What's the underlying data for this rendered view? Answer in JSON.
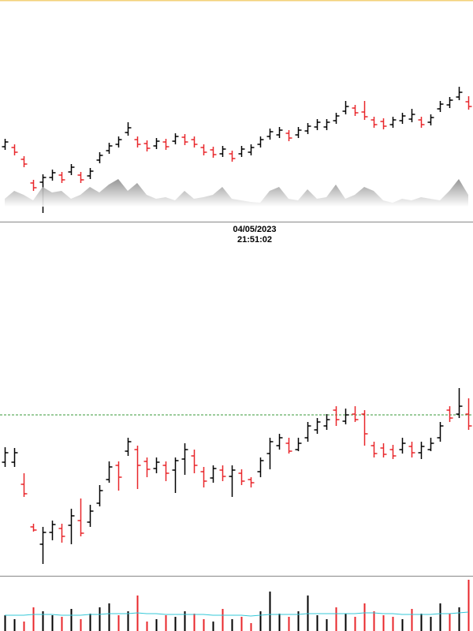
{
  "chart_data": [
    {
      "type": "ohlc",
      "up_color": "#000000",
      "down_color": "#e8262a",
      "ylim": [
        20,
        300
      ],
      "open": [
        114,
        113,
        98,
        68,
        69,
        75,
        78,
        82,
        78,
        77,
        97,
        109,
        117,
        132,
        123,
        118,
        115,
        120,
        121,
        126,
        123,
        113,
        110,
        105,
        105,
        105,
        107,
        117,
        127,
        129,
        131,
        129,
        134,
        139,
        139,
        147,
        159,
        163,
        158,
        148,
        146,
        142,
        147,
        149,
        148,
        145,
        162,
        167,
        177,
        171
      ],
      "high": [
        124,
        117,
        102,
        72,
        79,
        85,
        82,
        92,
        82,
        87,
        107,
        119,
        127,
        145,
        127,
        122,
        125,
        124,
        131,
        130,
        127,
        117,
        114,
        115,
        109,
        115,
        117,
        127,
        137,
        139,
        135,
        139,
        144,
        149,
        149,
        157,
        172,
        167,
        172,
        152,
        150,
        152,
        157,
        162,
        152,
        155,
        172,
        177,
        190,
        178
      ],
      "low": [
        110,
        103,
        88,
        58,
        30,
        71,
        68,
        78,
        68,
        73,
        93,
        105,
        113,
        128,
        113,
        108,
        111,
        110,
        117,
        116,
        113,
        103,
        100,
        101,
        95,
        101,
        103,
        113,
        123,
        125,
        121,
        125,
        130,
        135,
        135,
        143,
        155,
        153,
        148,
        138,
        136,
        138,
        143,
        145,
        138,
        141,
        158,
        163,
        173,
        161
      ],
      "close": [
        120,
        107,
        92,
        62,
        75,
        81,
        72,
        88,
        72,
        83,
        103,
        115,
        123,
        138,
        117,
        112,
        121,
        114,
        127,
        120,
        117,
        107,
        104,
        111,
        99,
        111,
        113,
        123,
        133,
        135,
        125,
        135,
        140,
        145,
        145,
        153,
        165,
        157,
        152,
        142,
        140,
        148,
        153,
        155,
        142,
        151,
        168,
        173,
        183,
        165
      ]
    },
    {
      "type": "area",
      "color": "#9a9a9a",
      "ylim": [
        0,
        100
      ],
      "values": [
        10,
        20,
        15,
        8,
        25,
        18,
        20,
        10,
        15,
        25,
        18,
        28,
        35,
        20,
        30,
        15,
        10,
        12,
        8,
        20,
        10,
        12,
        15,
        25,
        10,
        8,
        6,
        5,
        20,
        25,
        10,
        8,
        22,
        10,
        12,
        28,
        10,
        15,
        25,
        20,
        8,
        5,
        10,
        8,
        12,
        10,
        8,
        20,
        35,
        15
      ]
    },
    {
      "type": "ohlc",
      "up_color": "#000000",
      "down_color": "#e8262a",
      "ylim": [
        0,
        420
      ],
      "reference_line": 204,
      "reference_color": "#3a9a3a",
      "open": [
        144,
        144,
        116,
        62,
        40,
        55,
        60,
        64,
        70,
        68,
        92,
        122,
        140,
        158,
        160,
        145,
        136,
        140,
        134,
        148,
        152,
        132,
        124,
        134,
        126,
        130,
        122,
        132,
        155,
        165,
        168,
        160,
        175,
        185,
        190,
        210,
        196,
        205,
        205,
        165,
        162,
        160,
        160,
        164,
        156,
        160,
        175,
        210,
        205,
        205
      ],
      "high": [
        163,
        162,
        130,
        66,
        62,
        70,
        66,
        85,
        98,
        90,
        115,
        145,
        145,
        175,
        165,
        150,
        150,
        145,
        150,
        168,
        160,
        138,
        140,
        140,
        140,
        135,
        125,
        150,
        175,
        180,
        175,
        175,
        195,
        200,
        205,
        215,
        212,
        215,
        210,
        170,
        168,
        166,
        175,
        170,
        170,
        175,
        195,
        215,
        238,
        225
      ],
      "low": [
        138,
        138,
        100,
        56,
        15,
        45,
        42,
        40,
        50,
        62,
        88,
        118,
        108,
        152,
        110,
        125,
        130,
        120,
        105,
        128,
        130,
        112,
        118,
        120,
        100,
        115,
        112,
        125,
        135,
        160,
        155,
        158,
        170,
        180,
        185,
        190,
        192,
        195,
        165,
        150,
        150,
        148,
        155,
        150,
        148,
        158,
        170,
        195,
        200,
        185
      ],
      "close": [
        156,
        156,
        104,
        58,
        55,
        65,
        50,
        76,
        54,
        82,
        108,
        138,
        125,
        170,
        140,
        135,
        144,
        130,
        146,
        160,
        140,
        120,
        136,
        126,
        134,
        120,
        118,
        146,
        170,
        175,
        158,
        168,
        190,
        195,
        198,
        198,
        204,
        198,
        180,
        155,
        154,
        152,
        168,
        156,
        164,
        168,
        190,
        200,
        215,
        190
      ]
    },
    {
      "type": "volume",
      "ylim": [
        0,
        70
      ],
      "line_color": "#35c8d8",
      "values": [
        20,
        15,
        12,
        30,
        25,
        20,
        18,
        28,
        15,
        22,
        30,
        35,
        20,
        25,
        45,
        12,
        15,
        20,
        18,
        25,
        22,
        15,
        12,
        28,
        15,
        18,
        10,
        25,
        50,
        22,
        18,
        25,
        45,
        20,
        15,
        30,
        22,
        18,
        35,
        25,
        20,
        18,
        15,
        28,
        22,
        18,
        35,
        22,
        30,
        65
      ],
      "average": [
        20,
        20,
        20,
        21,
        21,
        21,
        20,
        20,
        20,
        21,
        21,
        22,
        22,
        22,
        23,
        22,
        22,
        21,
        21,
        21,
        21,
        21,
        20,
        20,
        20,
        20,
        19,
        20,
        21,
        21,
        21,
        21,
        22,
        22,
        22,
        22,
        22,
        22,
        23,
        23,
        22,
        22,
        21,
        21,
        21,
        21,
        22,
        22,
        23,
        24
      ]
    }
  ],
  "crosshair_label": {
    "date": "04/05/2023",
    "time": "21:51:02"
  }
}
